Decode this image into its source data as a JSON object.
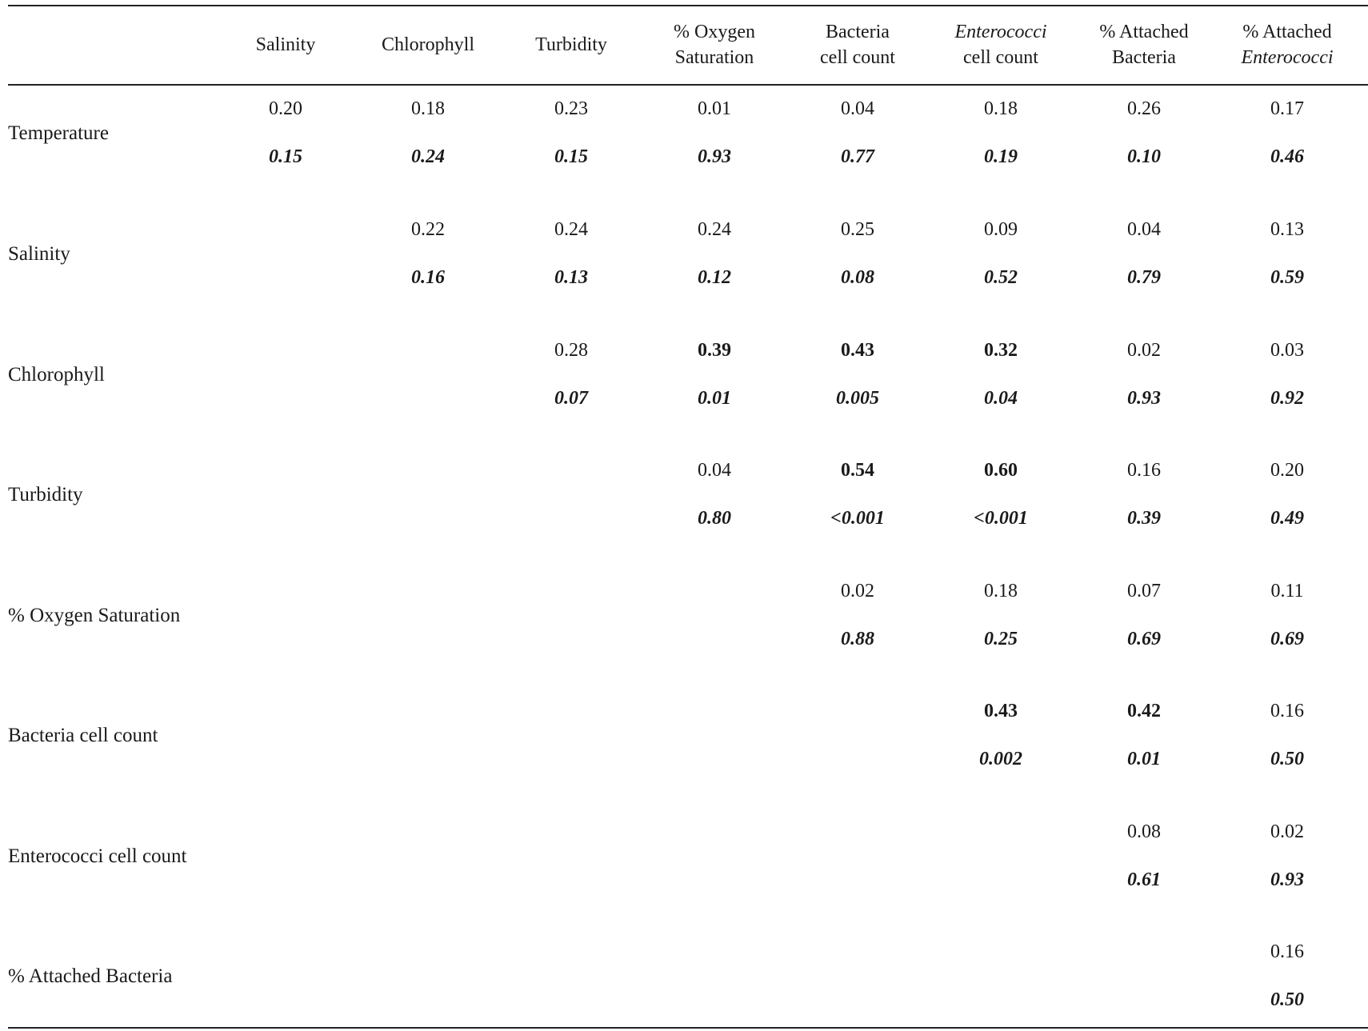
{
  "columns": [
    {
      "lines": [
        "Salinity"
      ]
    },
    {
      "lines": [
        "Chlorophyll"
      ]
    },
    {
      "lines": [
        "Turbidity"
      ]
    },
    {
      "lines": [
        "% Oxygen",
        "Saturation"
      ]
    },
    {
      "lines": [
        "Bacteria",
        "cell count"
      ]
    },
    {
      "lines": [
        "Enterococci",
        "cell count"
      ],
      "italic_line": 0
    },
    {
      "lines": [
        "% Attached",
        "Bacteria"
      ]
    },
    {
      "lines": [
        "% Attached",
        "Enterococci"
      ],
      "italic_line": 1
    }
  ],
  "rows": [
    {
      "label": "Temperature",
      "start": 0,
      "r": [
        "0.20",
        "0.18",
        "0.23",
        "0.01",
        "0.04",
        "0.18",
        "0.26",
        "0.17"
      ],
      "p": [
        "0.15",
        "0.24",
        "0.15",
        "0.93",
        "0.77",
        "0.19",
        "0.10",
        "0.46"
      ],
      "bold": []
    },
    {
      "label": "Salinity",
      "start": 1,
      "r": [
        "0.22",
        "0.24",
        "0.24",
        "0.25",
        "0.09",
        "0.04",
        "0.13"
      ],
      "p": [
        "0.16",
        "0.13",
        "0.12",
        "0.08",
        "0.52",
        "0.79",
        "0.59"
      ],
      "bold": []
    },
    {
      "label": "Chlorophyll",
      "start": 2,
      "r": [
        "0.28",
        "0.39",
        "0.43",
        "0.32",
        "0.02",
        "0.03"
      ],
      "p": [
        "0.07",
        "0.01",
        "0.005",
        "0.04",
        "0.93",
        "0.92"
      ],
      "bold": [
        1,
        2,
        3
      ]
    },
    {
      "label": "Turbidity",
      "start": 3,
      "r": [
        "0.04",
        "0.54",
        "0.60",
        "0.16",
        "0.20"
      ],
      "p": [
        "0.80",
        "<0.001",
        "<0.001",
        "0.39",
        "0.49"
      ],
      "bold": [
        1,
        2
      ]
    },
    {
      "label": "% Oxygen Saturation",
      "start": 4,
      "r": [
        "0.02",
        "0.18",
        "0.07",
        "0.11"
      ],
      "p": [
        "0.88",
        "0.25",
        "0.69",
        "0.69"
      ],
      "bold": []
    },
    {
      "label": "Bacteria cell count",
      "start": 5,
      "r": [
        "0.43",
        "0.42",
        "0.16"
      ],
      "p": [
        "0.002",
        "0.01",
        "0.50"
      ],
      "bold": [
        0,
        1
      ]
    },
    {
      "label": "Enterococci cell count",
      "start": 6,
      "r": [
        "0.08",
        "0.02"
      ],
      "p": [
        "0.61",
        "0.93"
      ],
      "bold": []
    },
    {
      "label": "% Attached Bacteria",
      "start": 7,
      "r": [
        "0.16"
      ],
      "p": [
        "0.50"
      ],
      "bold": []
    }
  ]
}
